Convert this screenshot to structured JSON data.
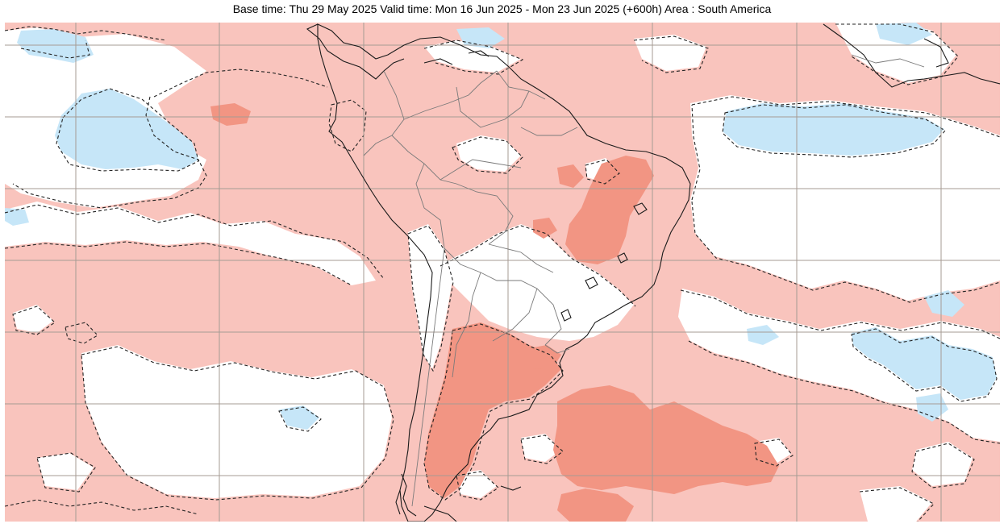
{
  "header": {
    "title": "Base time: Thu 29 May 2025 Valid time: Mon 16 Jun 2025 - Mon 23 Jun 2025 (+600h) Area : South America"
  },
  "map": {
    "area": "South America",
    "colors": {
      "weak_positive": "#f9c4bd",
      "strong_positive": "#f29583",
      "weak_negative": "#c6e6f8",
      "neutral": "#ffffff",
      "grid": "#a59b93",
      "coast": "#1a1a1a",
      "borders": "#7a7a7a",
      "contour": "#222222"
    }
  }
}
